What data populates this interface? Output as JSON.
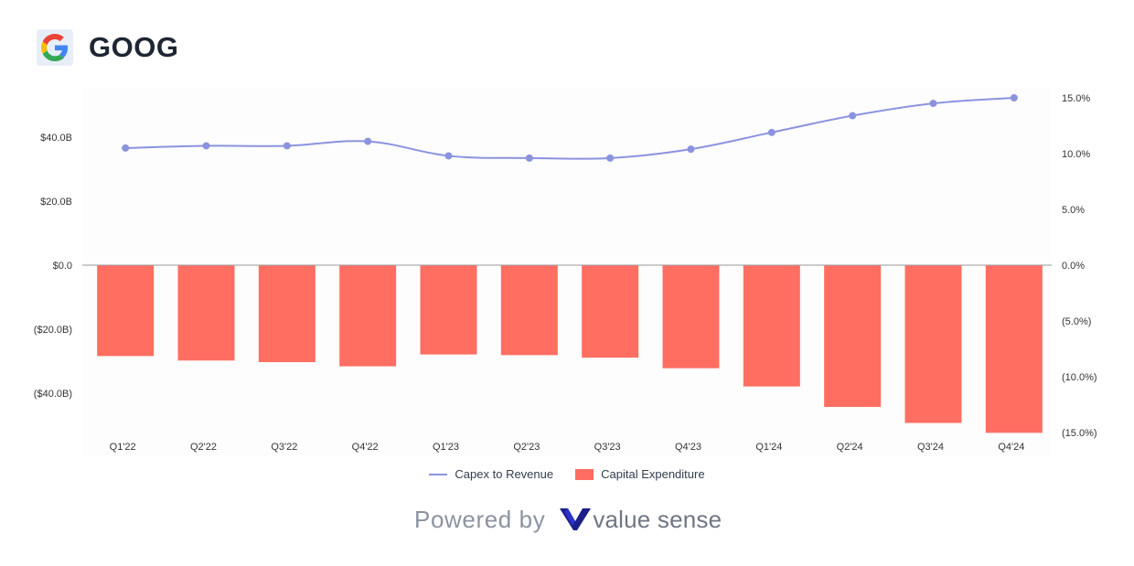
{
  "header": {
    "ticker": "GOOG",
    "logo_icon": "google-g-icon"
  },
  "footer": {
    "powered_by": "Powered by",
    "brand": "value sense",
    "brand_icon": "valuesense-v-icon"
  },
  "colors": {
    "bar": "#ff6e61",
    "line": "#8b93df",
    "zero_line": "#999999",
    "axis_text": "#333333"
  },
  "chart_data": {
    "type": "bar",
    "categories": [
      "Q1'22",
      "Q2'22",
      "Q3'22",
      "Q4'22",
      "Q1'23",
      "Q2'23",
      "Q3'23",
      "Q4'23",
      "Q1'24",
      "Q2'24",
      "Q3'24",
      "Q4'24"
    ],
    "series": [
      {
        "name": "Capital Expenditure",
        "type": "bar",
        "axis": "left",
        "values": [
          -28.4,
          -29.8,
          -30.3,
          -31.6,
          -27.9,
          -28.1,
          -28.9,
          -32.2,
          -37.9,
          -44.3,
          -49.3,
          -52.4
        ]
      },
      {
        "name": "Capex to Revenue",
        "type": "line",
        "axis": "right",
        "values": [
          10.5,
          10.7,
          10.7,
          11.1,
          9.8,
          9.6,
          9.6,
          10.4,
          11.9,
          13.4,
          14.5,
          15.0
        ]
      }
    ],
    "left_axis": {
      "ticks": [
        "$40.0B",
        "$20.0B",
        "$0.0",
        "($20.0B)",
        "($40.0B)"
      ],
      "tick_values": [
        40,
        20,
        0,
        -20,
        -40
      ],
      "range": [
        -60,
        60
      ]
    },
    "right_axis": {
      "ticks": [
        "15.0%",
        "10.0%",
        "5.0%",
        "0.0%",
        "(5.0%)",
        "(10.0%)",
        "(15.0%)"
      ],
      "tick_values": [
        15,
        10,
        5,
        0,
        -5,
        -10,
        -15
      ],
      "range": [
        -15,
        15
      ]
    },
    "legend": [
      "Capex to Revenue",
      "Capital Expenditure"
    ],
    "legend_position": "bottom",
    "grid": false
  }
}
